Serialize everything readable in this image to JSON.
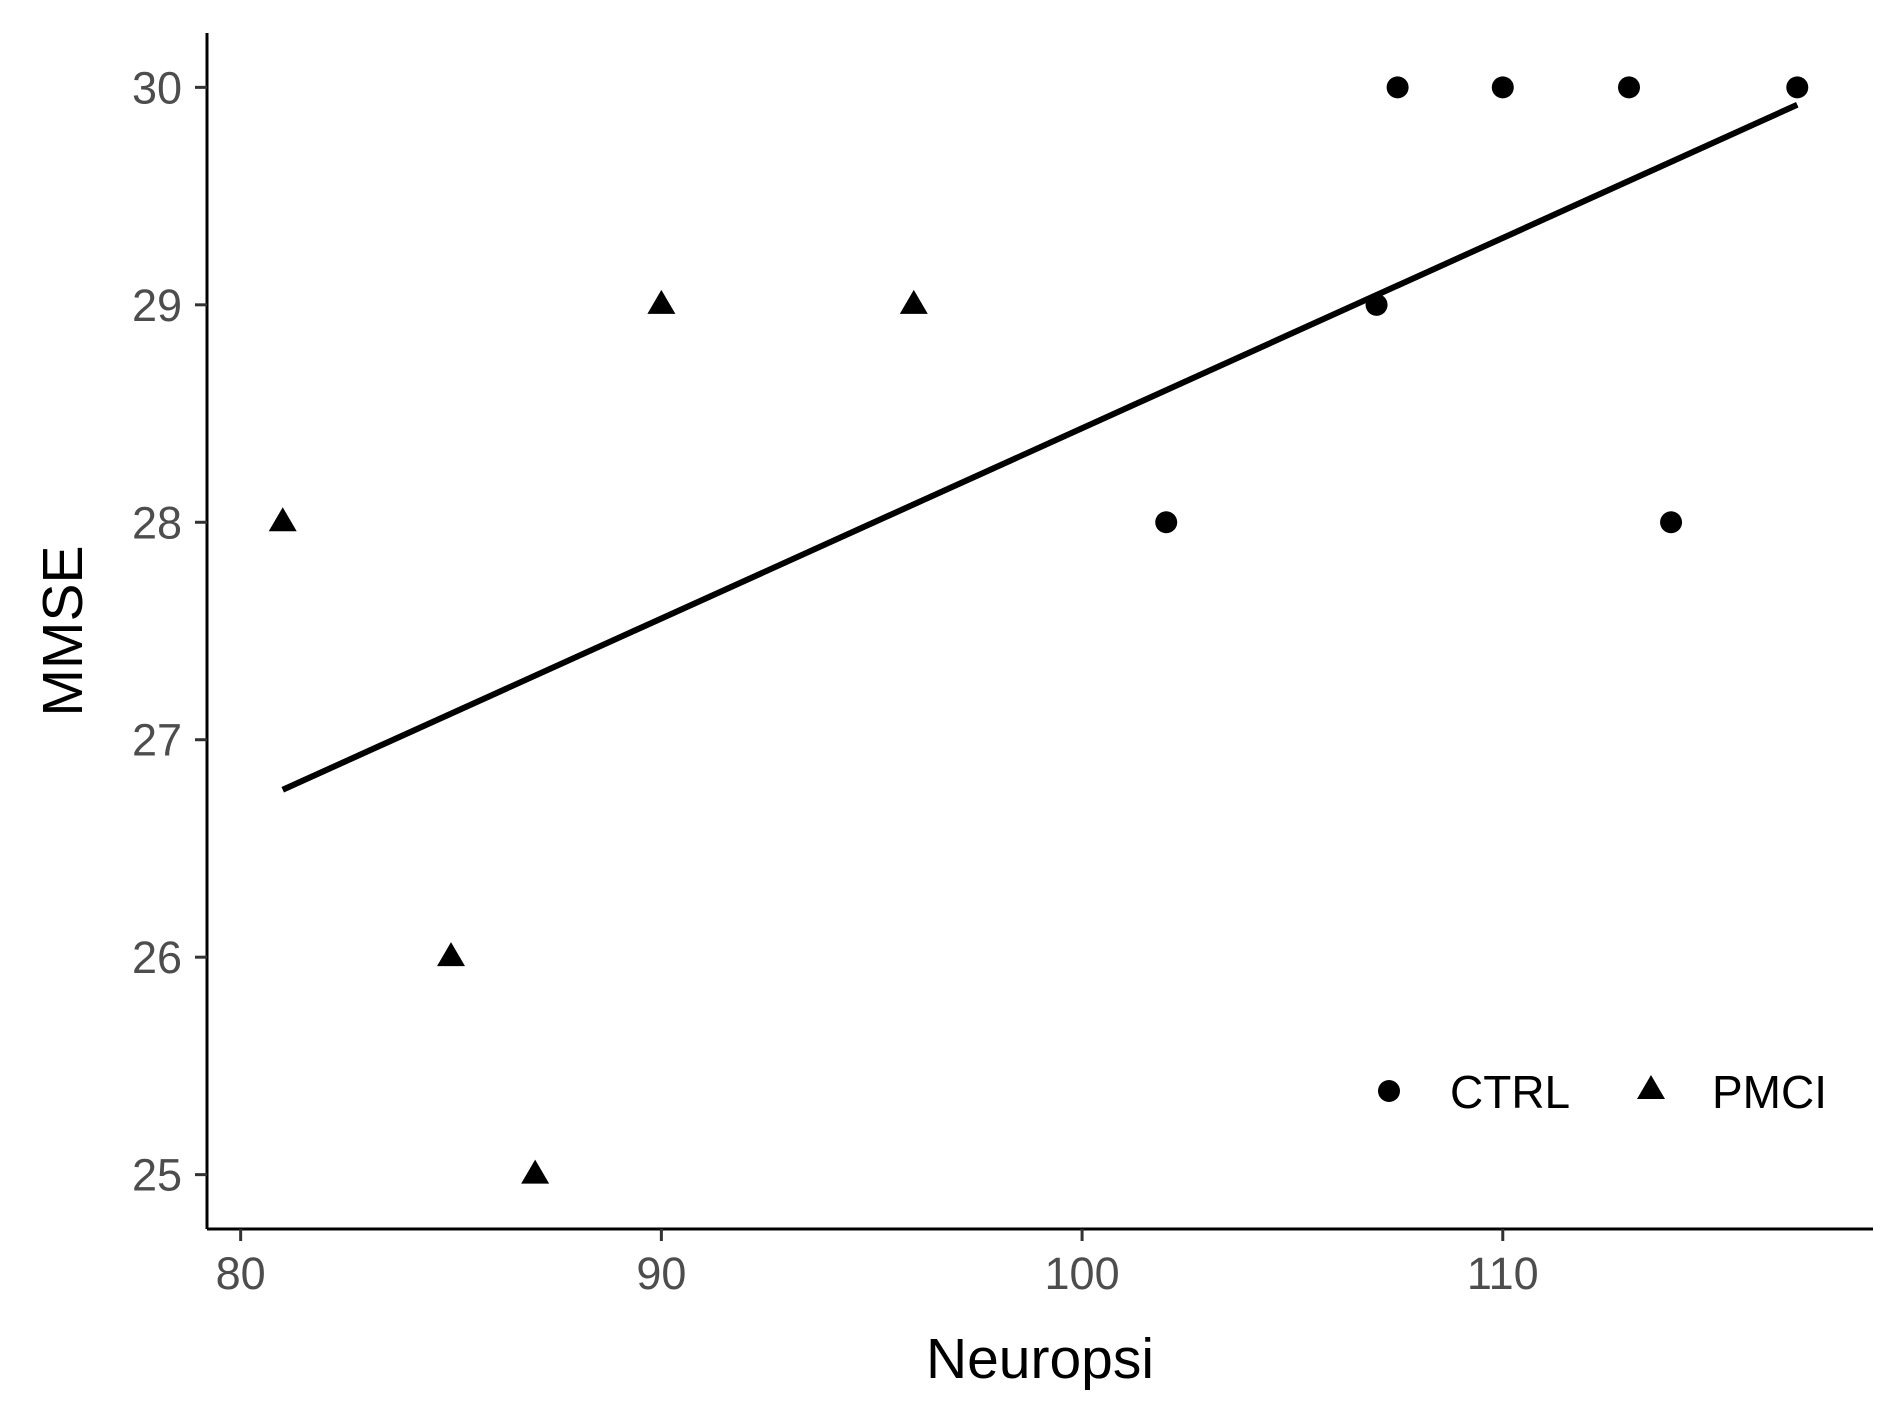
{
  "chart_data": {
    "type": "scatter",
    "title": "",
    "xlabel": "Neuropsi",
    "ylabel": "MMSE",
    "xlim": [
      79.2,
      118.8
    ],
    "ylim": [
      24.75,
      30.25
    ],
    "x_ticks": [
      80,
      90,
      100,
      110
    ],
    "y_ticks": [
      25,
      26,
      27,
      28,
      29,
      30
    ],
    "grid": false,
    "legend_position": "bottom-right",
    "series": [
      {
        "name": "CTRL",
        "marker": "circle",
        "color": "#000000",
        "points": [
          {
            "x": 102,
            "y": 28
          },
          {
            "x": 107,
            "y": 29
          },
          {
            "x": 107.5,
            "y": 30
          },
          {
            "x": 110,
            "y": 30
          },
          {
            "x": 113,
            "y": 30
          },
          {
            "x": 114,
            "y": 28
          },
          {
            "x": 117,
            "y": 30
          }
        ]
      },
      {
        "name": "PMCI",
        "marker": "triangle",
        "color": "#000000",
        "points": [
          {
            "x": 81,
            "y": 28
          },
          {
            "x": 85,
            "y": 26
          },
          {
            "x": 87,
            "y": 25
          },
          {
            "x": 90,
            "y": 29
          },
          {
            "x": 96,
            "y": 29
          }
        ]
      }
    ],
    "trend_line": {
      "type": "linear",
      "color": "#000000",
      "points": [
        {
          "x": 81,
          "y": 26.77
        },
        {
          "x": 117,
          "y": 29.92
        }
      ]
    }
  }
}
